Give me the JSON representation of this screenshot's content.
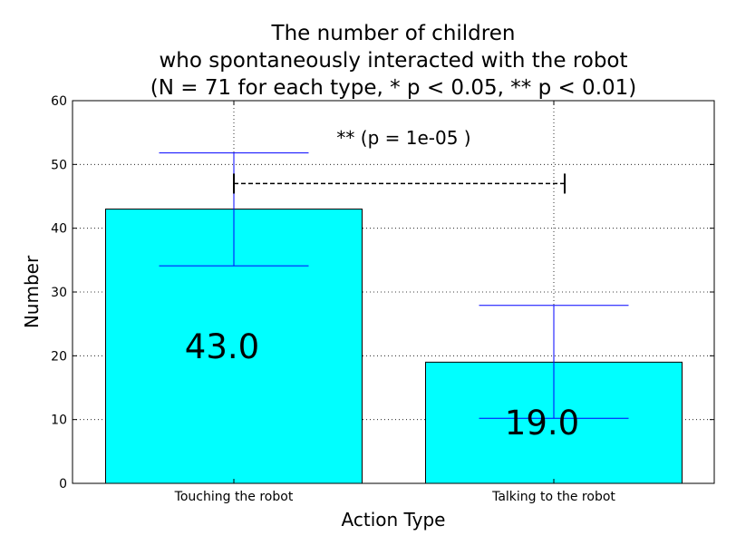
{
  "chart_data": {
    "type": "bar",
    "title_lines": [
      "The number of children",
      "who spontaneously interacted with the robot",
      "(N = 71 for each type, * p < 0.05, ** p < 0.01)"
    ],
    "xlabel": "Action Type",
    "ylabel": "Number",
    "categories": [
      "Touching the robot",
      "Talking to the robot"
    ],
    "values": [
      43,
      19
    ],
    "error_bars": [
      {
        "low": 34.1,
        "high": 51.8
      },
      {
        "low": 10.2,
        "high": 27.9
      }
    ],
    "data_labels": [
      "43.0",
      "19.0"
    ],
    "ylim": [
      0,
      60
    ],
    "yticks": [
      "0",
      "10",
      "20",
      "30",
      "40",
      "50",
      "60"
    ],
    "grid": true,
    "significance": {
      "label": "** (p = 1e-05 )",
      "between": [
        0,
        1
      ],
      "y": 47
    },
    "colors": {
      "bar_fill": "#00ffff",
      "bar_edge": "#000000",
      "error_bar": "#0000ff",
      "grid": "#000000"
    }
  }
}
